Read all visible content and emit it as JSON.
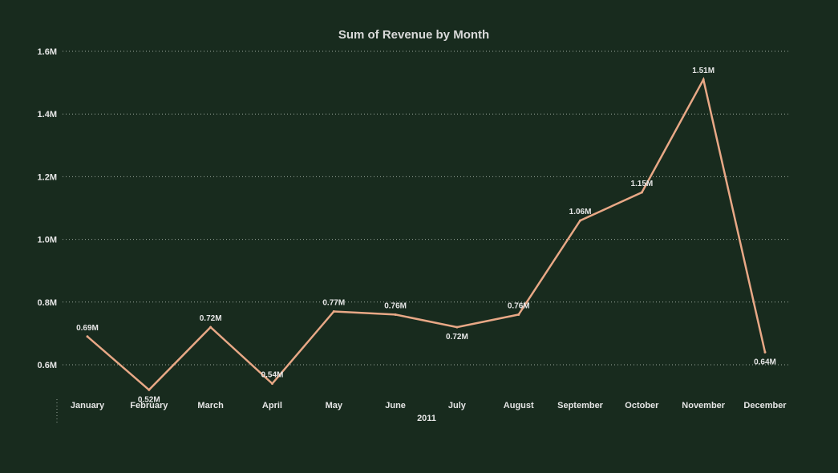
{
  "chart_data": {
    "type": "line",
    "title": "Sum of Revenue by Month",
    "xlabel": "",
    "ylabel": "",
    "x_group_label": "2011",
    "categories": [
      "January",
      "February",
      "March",
      "April",
      "May",
      "June",
      "July",
      "August",
      "September",
      "October",
      "November",
      "December"
    ],
    "series": [
      {
        "values": [
          0.69,
          0.52,
          0.72,
          0.54,
          0.77,
          0.76,
          0.72,
          0.76,
          1.06,
          1.15,
          1.51,
          0.64
        ],
        "data_labels": [
          "0.69M",
          "0.52M",
          "0.72M",
          "0.54M",
          "0.77M",
          "0.76M",
          "0.72M",
          "0.76M",
          "1.06M",
          "1.15M",
          "1.51M",
          "0.64M"
        ],
        "label_side": [
          "above",
          "below",
          "above",
          "above",
          "above",
          "above",
          "below",
          "above",
          "above",
          "above",
          "above",
          "below"
        ]
      }
    ],
    "yticks": [
      0.6,
      0.8,
      1.0,
      1.2,
      1.4,
      1.6
    ],
    "ytick_labels": [
      "0.6M",
      "0.8M",
      "1.0M",
      "1.2M",
      "1.4M",
      "1.6M"
    ],
    "ylim": [
      0.6,
      1.6
    ],
    "grid": true,
    "legend": "none"
  },
  "colors": {
    "background": "#182b1e",
    "line": "#e8a886",
    "text": "#e6e6e6",
    "title": "#d9d9d9",
    "grid": "#9aa79c"
  }
}
